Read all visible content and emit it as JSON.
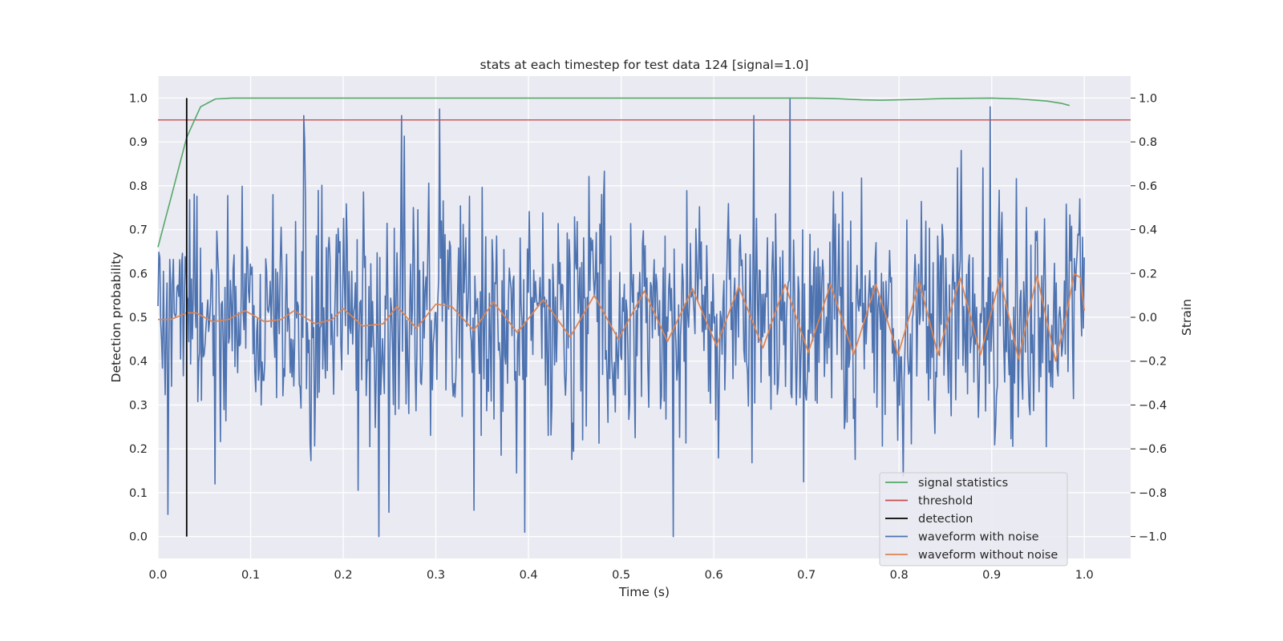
{
  "chart_data": {
    "type": "line",
    "title": "stats at each timestep for test data 124 [signal=1.0]",
    "xlabel": "Time (s)",
    "ylabel_left": "Detection probability",
    "ylabel_right": "Strain",
    "xlim": [
      0.0,
      1.05
    ],
    "ylim_left": [
      -0.05,
      1.05
    ],
    "ylim_right": [
      -1.1,
      1.1
    ],
    "x_ticks": [
      "0.0",
      "0.1",
      "0.2",
      "0.3",
      "0.4",
      "0.5",
      "0.6",
      "0.7",
      "0.8",
      "0.9",
      "1.0"
    ],
    "y_ticks_left": [
      "0.0",
      "0.1",
      "0.2",
      "0.3",
      "0.4",
      "0.5",
      "0.6",
      "0.7",
      "0.8",
      "0.9",
      "1.0"
    ],
    "y_ticks_right": [
      "−1.0",
      "−0.8",
      "−0.6",
      "−0.4",
      "−0.2",
      "0.0",
      "0.2",
      "0.4",
      "0.6",
      "0.8",
      "1.0"
    ],
    "grid": true,
    "legend_position": "lower-right",
    "series": [
      {
        "name": "signal statistics",
        "axis": "left",
        "color": "#55a868",
        "x": [
          0.0,
          0.015,
          0.031,
          0.046,
          0.062,
          0.08,
          0.1,
          0.2,
          0.3,
          0.4,
          0.5,
          0.6,
          0.7,
          0.73,
          0.76,
          0.78,
          0.8,
          0.85,
          0.9,
          0.93,
          0.96,
          0.975,
          0.984
        ],
        "y": [
          0.66,
          0.78,
          0.91,
          0.98,
          0.998,
          1.0,
          1.0,
          1.0,
          1.0,
          1.0,
          1.0,
          1.0,
          1.0,
          0.999,
          0.996,
          0.995,
          0.996,
          0.999,
          1.0,
          0.998,
          0.993,
          0.988,
          0.983
        ]
      },
      {
        "name": "threshold",
        "axis": "left",
        "color": "#c44e52",
        "x": [
          0.0,
          1.05
        ],
        "y": [
          0.95,
          0.95
        ]
      },
      {
        "name": "detection",
        "axis": "left",
        "color": "#000000",
        "x": [
          0.031,
          0.031
        ],
        "y": [
          0.0,
          1.0
        ]
      },
      {
        "name": "waveform with noise",
        "axis": "right",
        "color": "#4c72b0",
        "n_points": 1024,
        "x_range": [
          0.0,
          1.0
        ],
        "y_range": [
          -1.0,
          1.0
        ],
        "peaks": [
          [
            0.157,
            0.92
          ],
          [
            0.263,
            0.92
          ],
          [
            0.304,
            0.95
          ],
          [
            0.643,
            0.92
          ],
          [
            0.682,
            1.0
          ],
          [
            0.898,
            0.96
          ]
        ],
        "troughs": [
          [
            0.239,
            -1.0
          ],
          [
            0.396,
            -0.98
          ],
          [
            0.556,
            -1.0
          ],
          [
            0.341,
            -0.88
          ],
          [
            0.062,
            -0.76
          ]
        ]
      },
      {
        "name": "waveform without noise",
        "axis": "right",
        "color": "#dd8452",
        "x": [
          0.0,
          0.014,
          0.031,
          0.041,
          0.059,
          0.076,
          0.094,
          0.115,
          0.133,
          0.147,
          0.17,
          0.188,
          0.2,
          0.221,
          0.243,
          0.258,
          0.279,
          0.3,
          0.317,
          0.341,
          0.362,
          0.388,
          0.416,
          0.445,
          0.471,
          0.497,
          0.525,
          0.55,
          0.577,
          0.603,
          0.627,
          0.653,
          0.677,
          0.702,
          0.726,
          0.751,
          0.775,
          0.799,
          0.822,
          0.842,
          0.866,
          0.888,
          0.909,
          0.929,
          0.949,
          0.969,
          0.981,
          0.989,
          0.996,
          1.0
        ],
        "y": [
          -0.01,
          -0.01,
          0.02,
          0.02,
          -0.02,
          -0.01,
          0.03,
          -0.02,
          -0.01,
          0.03,
          -0.03,
          -0.01,
          0.04,
          -0.04,
          -0.03,
          0.05,
          -0.05,
          0.06,
          0.05,
          -0.06,
          0.07,
          -0.07,
          0.08,
          -0.09,
          0.1,
          -0.1,
          0.12,
          -0.11,
          0.13,
          -0.13,
          0.14,
          -0.14,
          0.15,
          -0.16,
          0.15,
          -0.17,
          0.15,
          -0.17,
          0.16,
          -0.17,
          0.18,
          -0.17,
          0.18,
          -0.19,
          0.19,
          -0.2,
          0.02,
          0.2,
          0.18,
          0.03
        ]
      }
    ]
  }
}
